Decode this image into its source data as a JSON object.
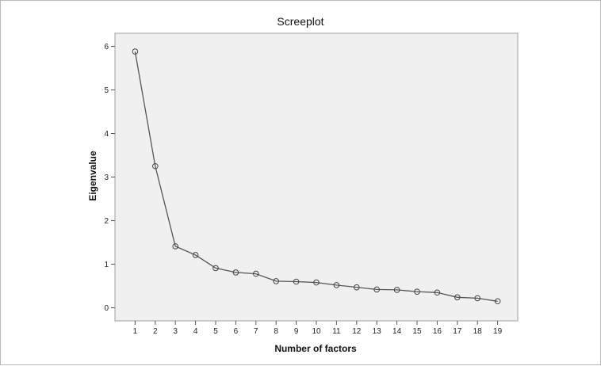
{
  "chart_data": {
    "type": "line",
    "title": "Screeplot",
    "xlabel": "Number of factors",
    "ylabel": "Eigenvalue",
    "x": [
      1,
      2,
      3,
      4,
      5,
      6,
      7,
      8,
      9,
      10,
      11,
      12,
      13,
      14,
      15,
      16,
      17,
      18,
      19
    ],
    "series": [
      {
        "values": [
          5.88,
          3.25,
          1.41,
          1.21,
          0.91,
          0.81,
          0.78,
          0.61,
          0.6,
          0.58,
          0.52,
          0.47,
          0.42,
          0.41,
          0.37,
          0.35,
          0.24,
          0.22,
          0.15
        ]
      }
    ],
    "xlim": [
      0,
      20
    ],
    "ylim": [
      -0.3,
      6.3
    ],
    "yticks": [
      0,
      1,
      2,
      3,
      4,
      5,
      6
    ],
    "xticks": [
      1,
      2,
      3,
      4,
      5,
      6,
      7,
      8,
      9,
      10,
      11,
      12,
      13,
      14,
      15,
      16,
      17,
      18,
      19
    ],
    "grid": false,
    "legend": "none",
    "colors": {
      "line": "#555555",
      "marker": "#444444",
      "plot_background": "#f0f0f0",
      "plot_border": "#a0a0a0"
    }
  }
}
